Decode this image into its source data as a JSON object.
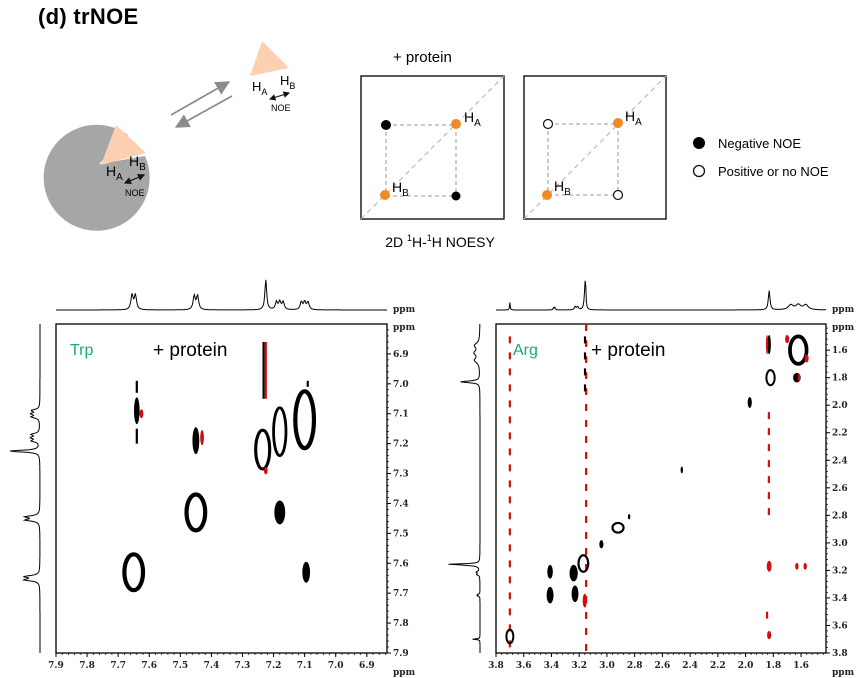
{
  "panel": {
    "title": "(d)  trNOE"
  },
  "schematic": {
    "free_ligand": {
      "label_a": "H",
      "label_a_sub": "A",
      "label_b": "H",
      "label_b_sub": "B",
      "noe_label": "NOE"
    },
    "bound_ligand": {
      "label_a": "H",
      "label_a_sub": "A",
      "label_b": "H",
      "label_b_sub": "B",
      "noe_label": "NOE"
    },
    "exchange_arrows": "equilibrium",
    "protein_condition": "+ protein",
    "noesy_caption": {
      "prefix": "2D ",
      "sup1": "1",
      "mid": "H-",
      "sup2": "1",
      "suffix": "H NOESY"
    },
    "boxes": [
      {
        "name": "negative-noe-box",
        "cross_peak_style": "filled",
        "diag_a": "H",
        "diag_a_sub": "A",
        "diag_b": "H",
        "diag_b_sub": "B"
      },
      {
        "name": "positive-noe-box",
        "cross_peak_style": "open",
        "diag_a": "H",
        "diag_a_sub": "A",
        "diag_b": "H",
        "diag_b_sub": "B"
      }
    ],
    "legend": [
      {
        "marker": "filled-circle",
        "label": "Negative  NOE"
      },
      {
        "marker": "open-circle",
        "label": "Positive or no NOE"
      }
    ],
    "colors": {
      "protein": "#a6a6a6",
      "ligand": "#fdd0b1",
      "diag_peak": "#f08a24",
      "arrow": "#8c8c8c",
      "dashed": "#9a9a9a"
    }
  },
  "chart_data": [
    {
      "type": "heatmap",
      "subtype": "2D NOESY contour",
      "title": "Trp",
      "annotation": "+ protein",
      "xlabel": "ppm",
      "ylabel": "ppm",
      "x_ticks": [
        "7.9",
        "7.8",
        "7.7",
        "7.6",
        "7.5",
        "7.4",
        "7.3",
        "7.2",
        "7.1",
        "7.0",
        "6.9"
      ],
      "y_ticks": [
        "6.9",
        "7.0",
        "7.1",
        "7.2",
        "7.3",
        "7.4",
        "7.5",
        "7.6",
        "7.7",
        "7.8",
        "7.9"
      ],
      "xlim": [
        7.9,
        6.835
      ],
      "ylim": [
        6.8,
        7.9
      ],
      "colors": {
        "negative": "#000000",
        "positive": "#d01010",
        "title": "#1aa97a"
      },
      "peaks": [
        {
          "x": 7.64,
          "y": 7.09,
          "w": 0.018,
          "h": 0.09,
          "sign": "negative",
          "style": "solid"
        },
        {
          "x": 7.625,
          "y": 7.1,
          "w": 0.012,
          "h": 0.03,
          "sign": "positive",
          "style": "solid"
        },
        {
          "x": 7.45,
          "y": 7.19,
          "w": 0.022,
          "h": 0.09,
          "sign": "negative",
          "style": "solid"
        },
        {
          "x": 7.43,
          "y": 7.18,
          "w": 0.012,
          "h": 0.05,
          "sign": "positive",
          "style": "solid"
        },
        {
          "x": 7.235,
          "y": 7.22,
          "w": 0.045,
          "h": 0.13,
          "sign": "negative",
          "style": "ring"
        },
        {
          "x": 7.18,
          "y": 7.16,
          "w": 0.04,
          "h": 0.16,
          "sign": "negative",
          "style": "ring"
        },
        {
          "x": 7.1,
          "y": 7.12,
          "w": 0.06,
          "h": 0.19,
          "sign": "negative",
          "style": "ring"
        },
        {
          "x": 7.225,
          "y": 7.29,
          "w": 0.012,
          "h": 0.025,
          "sign": "positive",
          "style": "solid"
        },
        {
          "x": 7.45,
          "y": 7.43,
          "w": 0.06,
          "h": 0.12,
          "sign": "negative",
          "style": "ring"
        },
        {
          "x": 7.18,
          "y": 7.43,
          "w": 0.035,
          "h": 0.08,
          "sign": "negative",
          "style": "solid"
        },
        {
          "x": 7.65,
          "y": 7.63,
          "w": 0.06,
          "h": 0.12,
          "sign": "negative",
          "style": "ring"
        },
        {
          "x": 7.095,
          "y": 7.63,
          "w": 0.025,
          "h": 0.07,
          "sign": "negative",
          "style": "solid"
        }
      ],
      "streaks": [
        {
          "x": 7.232,
          "y1": 6.86,
          "y2": 7.05,
          "sign": "negative"
        },
        {
          "x": 7.225,
          "y1": 6.86,
          "y2": 7.05,
          "sign": "positive"
        },
        {
          "x": 7.64,
          "y1": 6.99,
          "y2": 7.03,
          "sign": "negative"
        },
        {
          "x": 7.64,
          "y1": 7.15,
          "y2": 7.2,
          "sign": "negative"
        },
        {
          "x": 7.09,
          "y1": 6.99,
          "y2": 7.01,
          "sign": "negative"
        }
      ],
      "projection_peaks": [
        {
          "ppm": 7.65,
          "height": 0.7,
          "width": 0.012,
          "multiplet": 2
        },
        {
          "ppm": 7.45,
          "height": 0.65,
          "width": 0.012,
          "multiplet": 2
        },
        {
          "ppm": 7.225,
          "height": 1.0,
          "width": 0.01,
          "multiplet": 1
        },
        {
          "ppm": 7.18,
          "height": 0.55,
          "width": 0.012,
          "multiplet": 3
        },
        {
          "ppm": 7.1,
          "height": 0.55,
          "width": 0.012,
          "multiplet": 3
        }
      ]
    },
    {
      "type": "heatmap",
      "subtype": "2D NOESY contour",
      "title": "Arg",
      "annotation": "+ protein",
      "xlabel": "ppm",
      "ylabel": "ppm",
      "x_ticks": [
        "3.8",
        "3.6",
        "3.4",
        "3.2",
        "3.0",
        "2.8",
        "2.6",
        "2.4",
        "2.2",
        "2.0",
        "1.8",
        "1.6"
      ],
      "y_ticks": [
        "1.6",
        "1.8",
        "2.0",
        "2.2",
        "2.4",
        "2.6",
        "2.8",
        "3.0",
        "3.2",
        "3.4",
        "3.6",
        "3.8"
      ],
      "xlim": [
        3.8,
        1.42
      ],
      "ylim": [
        1.41,
        3.8
      ],
      "colors": {
        "negative": "#000000",
        "positive": "#d01010",
        "title": "#1aa97a"
      },
      "peaks": [
        {
          "x": 3.7,
          "y": 3.68,
          "w": 0.05,
          "h": 0.1,
          "sign": "negative",
          "style": "ring"
        },
        {
          "x": 3.41,
          "y": 3.21,
          "w": 0.04,
          "h": 0.1,
          "sign": "negative",
          "style": "solid"
        },
        {
          "x": 3.41,
          "y": 3.38,
          "w": 0.05,
          "h": 0.12,
          "sign": "negative",
          "style": "solid"
        },
        {
          "x": 3.24,
          "y": 3.22,
          "w": 0.06,
          "h": 0.12,
          "sign": "negative",
          "style": "solid"
        },
        {
          "x": 3.23,
          "y": 3.37,
          "w": 0.05,
          "h": 0.12,
          "sign": "negative",
          "style": "solid"
        },
        {
          "x": 3.17,
          "y": 3.15,
          "w": 0.07,
          "h": 0.12,
          "sign": "negative",
          "style": "ring"
        },
        {
          "x": 3.16,
          "y": 3.42,
          "w": 0.03,
          "h": 0.1,
          "sign": "positive",
          "style": "solid"
        },
        {
          "x": 2.92,
          "y": 2.89,
          "w": 0.08,
          "h": 0.07,
          "sign": "negative",
          "style": "ring"
        },
        {
          "x": 3.04,
          "y": 3.01,
          "w": 0.03,
          "h": 0.06,
          "sign": "negative",
          "style": "solid"
        },
        {
          "x": 2.84,
          "y": 2.81,
          "w": 0.015,
          "h": 0.04,
          "sign": "negative",
          "style": "solid"
        },
        {
          "x": 2.46,
          "y": 2.47,
          "w": 0.012,
          "h": 0.05,
          "sign": "negative",
          "style": "solid"
        },
        {
          "x": 1.97,
          "y": 1.98,
          "w": 0.03,
          "h": 0.08,
          "sign": "negative",
          "style": "solid"
        },
        {
          "x": 1.82,
          "y": 1.8,
          "w": 0.06,
          "h": 0.11,
          "sign": "negative",
          "style": "ring"
        },
        {
          "x": 1.62,
          "y": 1.6,
          "w": 0.12,
          "h": 0.2,
          "sign": "negative",
          "style": "ring"
        },
        {
          "x": 1.7,
          "y": 1.52,
          "w": 0.03,
          "h": 0.06,
          "sign": "positive",
          "style": "solid"
        },
        {
          "x": 1.56,
          "y": 1.66,
          "w": 0.03,
          "h": 0.06,
          "sign": "positive",
          "style": "solid"
        },
        {
          "x": 1.63,
          "y": 1.8,
          "w": 0.055,
          "h": 0.07,
          "sign": "negative",
          "style": "solid"
        },
        {
          "x": 1.615,
          "y": 1.8,
          "w": 0.015,
          "h": 0.06,
          "sign": "positive",
          "style": "solid"
        },
        {
          "x": 1.83,
          "y": 1.56,
          "w": 0.025,
          "h": 0.14,
          "sign": "negative",
          "style": "solid"
        },
        {
          "x": 1.845,
          "y": 1.56,
          "w": 0.012,
          "h": 0.14,
          "sign": "positive",
          "style": "solid"
        },
        {
          "x": 1.83,
          "y": 3.17,
          "w": 0.035,
          "h": 0.08,
          "sign": "positive",
          "style": "solid"
        },
        {
          "x": 1.63,
          "y": 3.17,
          "w": 0.025,
          "h": 0.05,
          "sign": "positive",
          "style": "solid"
        },
        {
          "x": 1.57,
          "y": 3.17,
          "w": 0.025,
          "h": 0.05,
          "sign": "positive",
          "style": "solid"
        },
        {
          "x": 1.83,
          "y": 3.67,
          "w": 0.03,
          "h": 0.06,
          "sign": "positive",
          "style": "solid"
        }
      ],
      "streaks": [
        {
          "x": 3.15,
          "y1": 1.41,
          "y2": 3.8,
          "sign": "positive",
          "dashed": true
        },
        {
          "x": 3.158,
          "y1": 1.5,
          "y2": 1.95,
          "sign": "negative",
          "dashed": true
        },
        {
          "x": 3.7,
          "y1": 1.5,
          "y2": 3.8,
          "sign": "positive",
          "dashed": true
        },
        {
          "x": 1.832,
          "y1": 2.05,
          "y2": 2.85,
          "sign": "positive",
          "dashed": true
        },
        {
          "x": 1.845,
          "y1": 3.5,
          "y2": 3.55,
          "sign": "positive",
          "dashed": false
        }
      ],
      "projection_peaks": [
        {
          "ppm": 3.7,
          "height": 0.25,
          "width": 0.008,
          "multiplet": 1
        },
        {
          "ppm": 3.38,
          "height": 0.12,
          "width": 0.01,
          "multiplet": 2
        },
        {
          "ppm": 3.22,
          "height": 0.15,
          "width": 0.02,
          "multiplet": 2
        },
        {
          "ppm": 3.155,
          "height": 1.0,
          "width": 0.008,
          "multiplet": 1
        },
        {
          "ppm": 3.16,
          "height": 0.45,
          "width": 0.02,
          "multiplet": 1
        },
        {
          "ppm": 1.83,
          "height": 0.65,
          "width": 0.02,
          "multiplet": 1
        },
        {
          "ppm": 1.62,
          "height": 0.35,
          "width": 0.06,
          "multiplet": 3
        }
      ]
    }
  ]
}
